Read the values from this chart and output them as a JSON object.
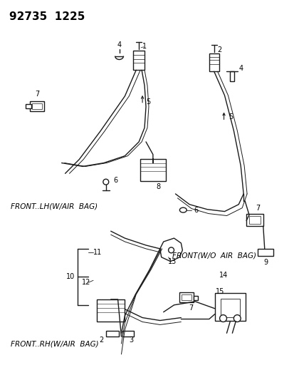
{
  "title": "92735  1225",
  "bg_color": "#ffffff",
  "line_color": "#1a1a1a",
  "labels": {
    "front_lh": "FRONT..LH(W/AIR  BAG)",
    "front_wo": "FRONT(W/O  AIR  BAG)",
    "front_rh": "FRONT..RH(W/AIR  BAG)"
  },
  "title_fontsize": 11
}
